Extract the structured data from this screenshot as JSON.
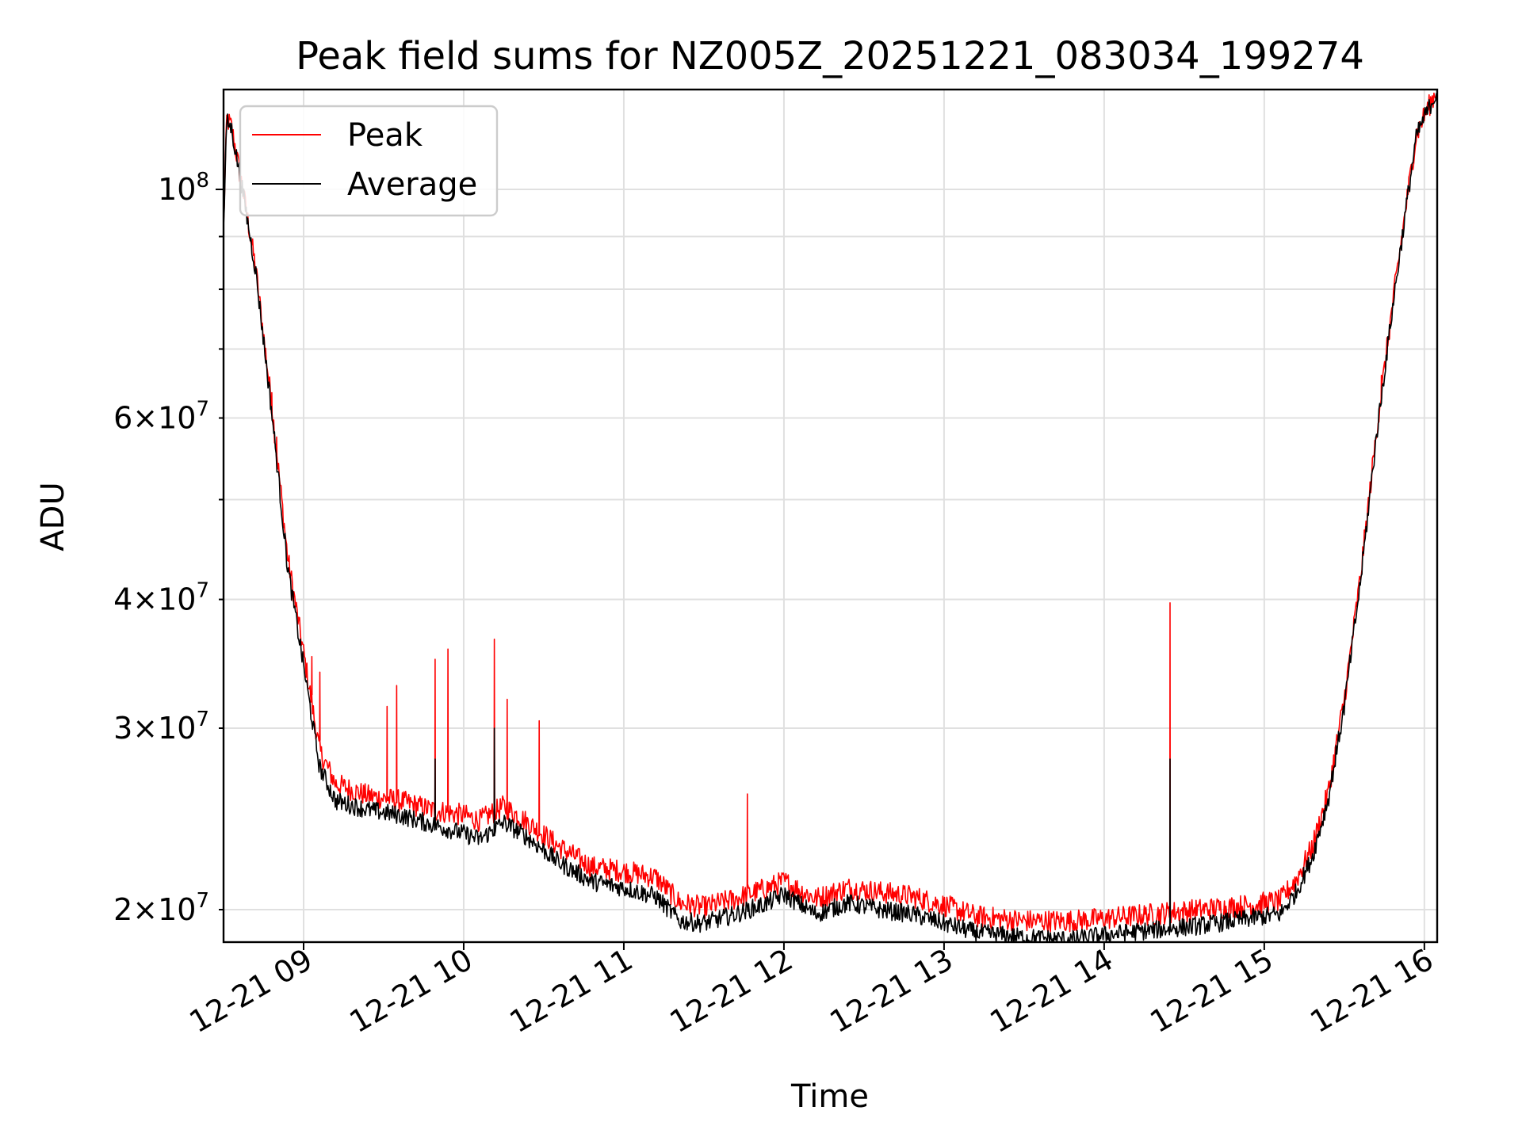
{
  "chart_data": {
    "type": "line",
    "title": "Peak field sums for NZ005Z_20251221_083034_199274",
    "xlabel": "Time",
    "ylabel": "ADU",
    "yscale": "log",
    "grid": true,
    "legend_position": "top-left",
    "xlim": [
      8.5,
      16.08
    ],
    "ylim": [
      18600000,
      125000000
    ],
    "x_unit": "hours since 2025-12-21 00:00",
    "x_ticks": [
      {
        "value": 9,
        "label": "12-21 09"
      },
      {
        "value": 10,
        "label": "12-21 10"
      },
      {
        "value": 11,
        "label": "12-21 11"
      },
      {
        "value": 12,
        "label": "12-21 12"
      },
      {
        "value": 13,
        "label": "12-21 13"
      },
      {
        "value": 14,
        "label": "12-21 14"
      },
      {
        "value": 15,
        "label": "12-21 15"
      },
      {
        "value": 16,
        "label": "12-21 16"
      }
    ],
    "y_major_ticks": [
      {
        "value": 100000000,
        "base": "10",
        "exp": "8",
        "mant": ""
      }
    ],
    "y_minor_labeled_ticks": [
      {
        "value": 20000000,
        "mant": "2",
        "base": "10",
        "exp": "7"
      },
      {
        "value": 30000000,
        "mant": "3",
        "base": "10",
        "exp": "7"
      },
      {
        "value": 40000000,
        "mant": "4",
        "base": "10",
        "exp": "7"
      },
      {
        "value": 60000000,
        "mant": "6",
        "base": "10",
        "exp": "7"
      }
    ],
    "y_minor_unlabeled_ticks": [
      50000000,
      70000000,
      80000000,
      90000000
    ],
    "series": [
      {
        "name": "Peak",
        "color": "#ff0000",
        "x": [
          8.5,
          8.52,
          8.55,
          8.62,
          8.7,
          8.8,
          8.9,
          9.0,
          9.1,
          9.2,
          9.4,
          9.6,
          9.8,
          10.0,
          10.1,
          10.25,
          10.4,
          10.6,
          10.8,
          11.0,
          11.2,
          11.35,
          11.5,
          11.7,
          11.9,
          12.0,
          12.2,
          12.4,
          12.6,
          12.8,
          13.0,
          13.2,
          13.5,
          13.8,
          14.0,
          14.3,
          14.6,
          14.9,
          15.1,
          15.2,
          15.3,
          15.4,
          15.5,
          15.6,
          15.7,
          15.8,
          15.9,
          15.95,
          16.0,
          16.08
        ],
        "y": [
          92000000,
          117000000,
          115000000,
          100000000,
          84000000,
          62000000,
          44000000,
          35500000,
          28500000,
          26500000,
          25800000,
          25500000,
          25000000,
          24700000,
          24400000,
          25200000,
          24300000,
          23000000,
          22000000,
          21800000,
          21500000,
          20300000,
          20100000,
          20500000,
          21000000,
          21300000,
          20500000,
          21000000,
          20800000,
          20600000,
          20200000,
          19700000,
          19500000,
          19500000,
          19600000,
          19800000,
          20000000,
          20200000,
          20400000,
          21400000,
          23000000,
          26000000,
          32000000,
          42000000,
          58000000,
          77000000,
          100000000,
          113000000,
          118000000,
          125000000
        ],
        "spikes": [
          {
            "x": 8.8,
            "y": 63500000
          },
          {
            "x": 8.83,
            "y": 57500000
          },
          {
            "x": 9.05,
            "y": 35200000
          },
          {
            "x": 9.1,
            "y": 34000000
          },
          {
            "x": 9.52,
            "y": 31500000
          },
          {
            "x": 9.58,
            "y": 33000000
          },
          {
            "x": 9.82,
            "y": 35000000
          },
          {
            "x": 9.9,
            "y": 35800000
          },
          {
            "x": 10.19,
            "y": 36600000
          },
          {
            "x": 10.27,
            "y": 32000000
          },
          {
            "x": 10.47,
            "y": 30500000
          },
          {
            "x": 11.77,
            "y": 25900000
          },
          {
            "x": 14.41,
            "y": 39700000
          },
          {
            "x": 15.73,
            "y": 66000000
          }
        ]
      },
      {
        "name": "Average",
        "color": "#000000",
        "x": [
          8.5,
          8.52,
          8.55,
          8.62,
          8.7,
          8.8,
          8.9,
          9.0,
          9.1,
          9.2,
          9.4,
          9.6,
          9.8,
          10.0,
          10.1,
          10.25,
          10.4,
          10.6,
          10.8,
          11.0,
          11.2,
          11.35,
          11.5,
          11.7,
          11.9,
          12.0,
          12.2,
          12.4,
          12.6,
          12.8,
          13.0,
          13.2,
          13.5,
          13.8,
          14.0,
          14.3,
          14.6,
          14.9,
          15.1,
          15.2,
          15.3,
          15.4,
          15.5,
          15.6,
          15.7,
          15.8,
          15.9,
          15.95,
          16.0,
          16.08
        ],
        "y": [
          91000000,
          116500000,
          114500000,
          99500000,
          83500000,
          61000000,
          43000000,
          34500000,
          27500000,
          25500000,
          25000000,
          24700000,
          24200000,
          23700000,
          23400000,
          24300000,
          23500000,
          22200000,
          21300000,
          21000000,
          20600000,
          19500000,
          19400000,
          19800000,
          20300000,
          20700000,
          19800000,
          20300000,
          20000000,
          19800000,
          19400000,
          19000000,
          18800000,
          18700000,
          18900000,
          19100000,
          19300000,
          19600000,
          19800000,
          20800000,
          22500000,
          25600000,
          31500000,
          41500000,
          57500000,
          76500000,
          99500000,
          112500000,
          117500000,
          124500000
        ],
        "spikes": [
          {
            "x": 9.82,
            "y": 28000000
          },
          {
            "x": 10.19,
            "y": 30000000
          },
          {
            "x": 14.41,
            "y": 28000000
          }
        ]
      }
    ]
  }
}
